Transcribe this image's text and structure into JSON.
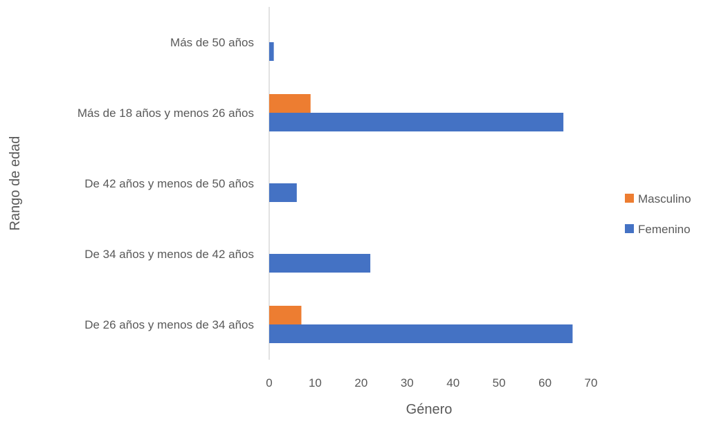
{
  "chart_data": {
    "type": "bar",
    "orientation": "horizontal",
    "title": "",
    "xlabel": "Género",
    "ylabel": "Rango de edad",
    "categories": [
      "De 26 años y menos de 34 años",
      "De 34 años y menos de 42 años",
      "De 42 años y menos de 50 años",
      "Más de 18 años y menos 26 años",
      "Más de 50 años"
    ],
    "series": [
      {
        "name": "Femenino",
        "color": "#4472C4",
        "values": [
          66,
          22,
          6,
          64,
          1
        ]
      },
      {
        "name": "Masculino",
        "color": "#ED7D31",
        "values": [
          7,
          0,
          0,
          9,
          0
        ]
      }
    ],
    "xlim": [
      0,
      70
    ],
    "xticks": [
      "0",
      "10",
      "20",
      "30",
      "40",
      "50",
      "60",
      "70"
    ],
    "grid": false,
    "legend_position": "right",
    "legend_order": [
      "Masculino",
      "Femenino"
    ]
  }
}
